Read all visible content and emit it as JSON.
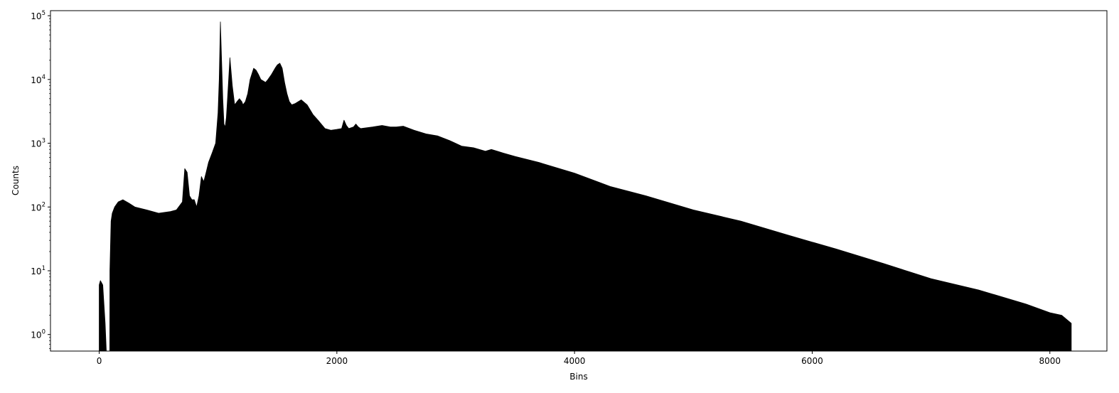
{
  "chart_data": {
    "type": "area",
    "title": "",
    "xlabel": "Bins",
    "ylabel": "Counts",
    "xlim": [
      -410,
      8480
    ],
    "ylim": [
      0.55,
      120000
    ],
    "yscale": "log",
    "grid": false,
    "legend": "none",
    "color": "#000000",
    "x_ticks": [
      {
        "value": 0,
        "label": "0"
      },
      {
        "value": 2000,
        "label": "2000"
      },
      {
        "value": 4000,
        "label": "4000"
      },
      {
        "value": 6000,
        "label": "6000"
      },
      {
        "value": 8000,
        "label": "8000"
      }
    ],
    "y_ticks": [
      {
        "value": 1,
        "base": "10",
        "exp": "0"
      },
      {
        "value": 10,
        "base": "10",
        "exp": "1"
      },
      {
        "value": 100,
        "base": "10",
        "exp": "2"
      },
      {
        "value": 1000,
        "base": "10",
        "exp": "3"
      },
      {
        "value": 10000,
        "base": "10",
        "exp": "4"
      },
      {
        "value": 100000,
        "base": "10",
        "exp": "5"
      }
    ],
    "series": [
      {
        "x": [
          0,
          10,
          30,
          50,
          60,
          61,
          89,
          90,
          100,
          110,
          130,
          160,
          200,
          250,
          300,
          400,
          500,
          600,
          650,
          700,
          720,
          740,
          760,
          780,
          800,
          820,
          840,
          860,
          880,
          900,
          920,
          950,
          980,
          1000,
          1010,
          1020,
          1030,
          1040,
          1050,
          1060,
          1070,
          1080,
          1100,
          1120,
          1140,
          1160,
          1180,
          1200,
          1210,
          1230,
          1250,
          1270,
          1300,
          1320,
          1340,
          1360,
          1380,
          1400,
          1420,
          1450,
          1480,
          1500,
          1520,
          1540,
          1560,
          1580,
          1600,
          1620,
          1650,
          1700,
          1750,
          1800,
          1850,
          1900,
          1950,
          2000,
          2040,
          2060,
          2080,
          2100,
          2140,
          2160,
          2180,
          2200,
          2300,
          2380,
          2450,
          2500,
          2560,
          2650,
          2750,
          2850,
          2950,
          3050,
          3150,
          3250,
          3300,
          3350,
          3400,
          3500,
          3700,
          4000,
          4300,
          4600,
          5000,
          5400,
          5800,
          6200,
          6600,
          7000,
          7400,
          7800,
          8000,
          8100,
          8180
        ],
        "y": [
          6,
          7,
          6,
          1.5,
          0.55,
          0.55,
          0.55,
          10,
          60,
          80,
          100,
          120,
          130,
          115,
          100,
          90,
          80,
          85,
          90,
          120,
          400,
          350,
          150,
          130,
          130,
          100,
          150,
          300,
          250,
          350,
          500,
          700,
          1000,
          3000,
          10000,
          80000,
          20000,
          5000,
          2000,
          1800,
          2500,
          5000,
          22000,
          8000,
          4000,
          4500,
          5000,
          4500,
          4000,
          4500,
          6000,
          10000,
          15000,
          14000,
          12000,
          10000,
          9500,
          9000,
          10000,
          12000,
          15000,
          17000,
          18000,
          15000,
          9000,
          6000,
          4500,
          4000,
          4200,
          4800,
          4000,
          2800,
          2200,
          1700,
          1600,
          1650,
          1700,
          2300,
          1900,
          1700,
          1800,
          2000,
          1800,
          1700,
          1800,
          1900,
          1800,
          1800,
          1850,
          1600,
          1400,
          1300,
          1100,
          900,
          850,
          750,
          800,
          750,
          700,
          620,
          500,
          340,
          210,
          150,
          90,
          60,
          36,
          22,
          13,
          7.5,
          5,
          3,
          2.2,
          2,
          1.5
        ]
      }
    ]
  }
}
